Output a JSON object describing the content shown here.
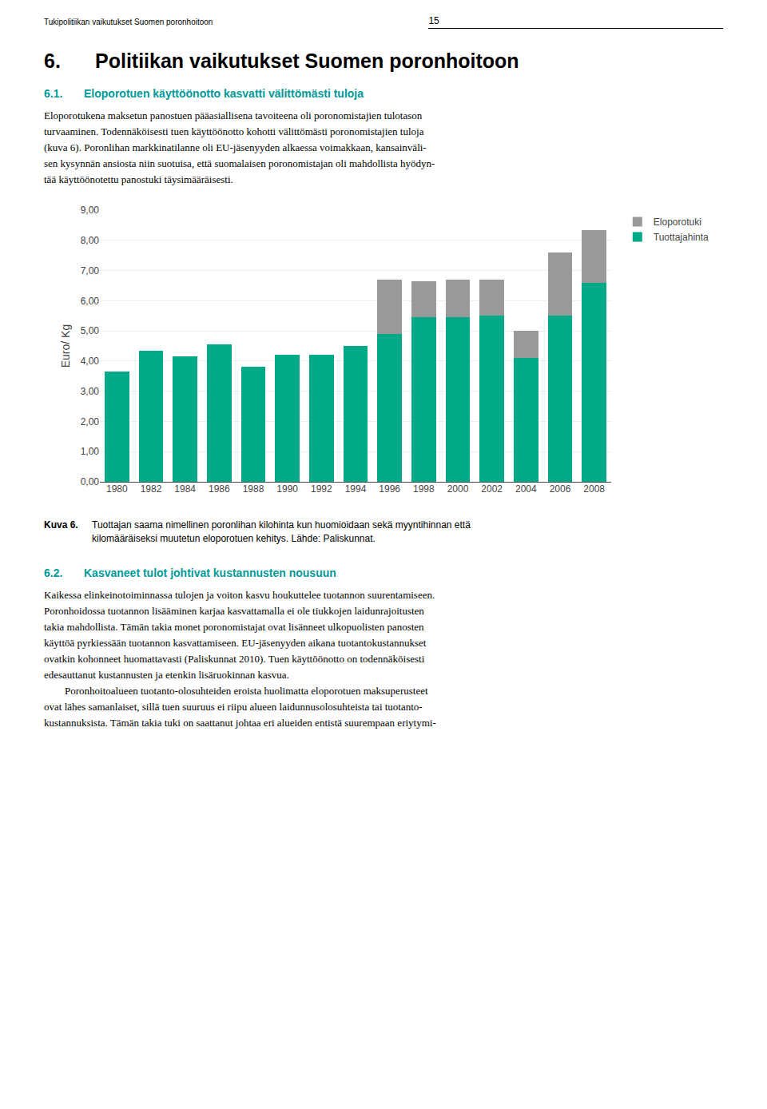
{
  "header": "Tukipolitiikan vaikutukset Suomen poronhoitoon",
  "page_number": "15",
  "section": {
    "number": "6.",
    "title": "Politiikan vaikutukset Suomen poronhoitoon"
  },
  "subsection1": {
    "number": "6.1.",
    "title": "Eloporotuen käyttöönotto kasvatti välittömästi tuloja"
  },
  "paragraph1": [
    "Eloporotukena maksetun panostuen pääasiallisena tavoiteena oli poronomistajien tulotason",
    "turvaaminen. Todennäköisesti tuen käyttöönotto kohotti välittömästi poronomistajien tuloja",
    "(kuva 6). Poronlihan markkinatilanne oli EU-jäsenyyden alkaessa voimakkaan, kansainväli-",
    "sen kysynnän ansiosta niin suotuisa, että suomalaisen poronomistajan oli mahdollista hyödyn-",
    "tää käyttöönotettu panostuki täysimääräisesti."
  ],
  "caption": {
    "label": "Kuva 6.",
    "lines": [
      "Tuottajan saama nimellinen poronlihan kilohinta kun huomioidaan sekä myyntihinnan että",
      "kilomääräiseksi muutetun eloporotuen kehitys. Lähde: Paliskunnat."
    ]
  },
  "subsection2": {
    "number": "6.2.",
    "title": "Kasvaneet tulot johtivat kustannusten nousuun"
  },
  "paragraph2": [
    "Kaikessa elinkeinotoiminnassa tulojen ja voiton kasvu houkuttelee tuotannon suurentamiseen.",
    "Poronhoidossa tuotannon lisääminen karjaa kasvattamalla ei ole tiukkojen laidunrajoitusten",
    "takia mahdollista. Tämän takia monet poronomistajat ovat lisänneet ulkopuolisten panosten",
    "käyttöä pyrkiessään tuotannon kasvattamiseen. EU-jäsenyyden aikana tuotantokustannukset",
    "ovatkin kohonneet huomattavasti (Paliskunnat 2010). Tuen käyttöönotto on todennäköisesti",
    "edesauttanut kustannusten ja etenkin lisäruokinnan kasvua."
  ],
  "paragraph3": [
    "        Poronhoitoalueen tuotanto-olosuhteiden eroista huolimatta eloporotuen maksuperusteet",
    "ovat lähes samanlaiset, sillä tuen suuruus ei riipu alueen laidunnusolosuhteista tai tuotanto-",
    "kustannuksista. Tämän takia tuki on saattanut johtaa eri alueiden entistä suurempaan eriytymi-"
  ],
  "chart_data": {
    "type": "bar",
    "stacked": true,
    "ylabel": "Euro/ Kg",
    "categories": [
      "1980",
      "1982",
      "1984",
      "1986",
      "1988",
      "1990",
      "1992",
      "1994",
      "1996",
      "1998",
      "2000",
      "2002",
      "2004",
      "2006",
      "2008"
    ],
    "series": [
      {
        "name": "Tuottajahinta",
        "color": "#00AA88",
        "values": [
          3.65,
          4.35,
          4.15,
          4.55,
          3.8,
          4.2,
          4.2,
          4.5,
          4.9,
          5.45,
          5.45,
          5.5,
          4.1,
          5.5,
          6.6
        ]
      },
      {
        "name": "Eloporotuki",
        "color": "#999999",
        "values": [
          0.0,
          0.0,
          0.0,
          0.0,
          0.0,
          0.0,
          0.0,
          0.0,
          1.8,
          1.2,
          1.25,
          1.2,
          0.9,
          2.1,
          1.75
        ]
      }
    ],
    "ylim": [
      0,
      9.0
    ],
    "yticks": [
      {
        "value": 0.0,
        "label": "0,00"
      },
      {
        "value": 1.0,
        "label": "1,00"
      },
      {
        "value": 2.0,
        "label": "2,00"
      },
      {
        "value": 3.0,
        "label": "3,00"
      },
      {
        "value": 4.0,
        "label": "4,00"
      },
      {
        "value": 5.0,
        "label": "5,00"
      },
      {
        "value": 6.0,
        "label": "6,00"
      },
      {
        "value": 7.0,
        "label": "7,00"
      },
      {
        "value": 8.0,
        "label": "8,00"
      },
      {
        "value": 9.0,
        "label": "9,00"
      }
    ],
    "grid": true,
    "legend": "right"
  }
}
